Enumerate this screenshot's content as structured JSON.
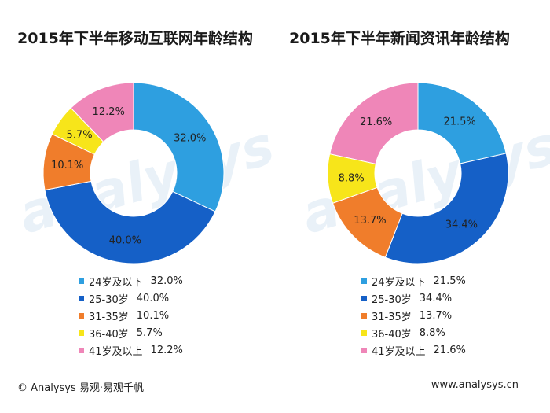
{
  "chart_data": [
    {
      "type": "pie",
      "title": "2015年下半年移动互联网年龄结构",
      "categories": [
        "24岁及以下",
        "25-30岁",
        "31-35岁",
        "36-40岁",
        "41岁及以上"
      ],
      "values": [
        32.0,
        40.0,
        10.1,
        5.7,
        12.2
      ],
      "value_labels": [
        "32.0%",
        "40.0%",
        "10.1%",
        "5.7%",
        "12.2%"
      ],
      "legend_values": [
        "32.0%",
        "40.0%",
        "10.1%",
        "5.7%",
        "12.2%"
      ],
      "legend_placement": "bottom"
    },
    {
      "type": "pie",
      "title": "2015年下半年新闻资讯年龄结构",
      "categories": [
        "24岁及以下",
        "25-30岁",
        "31-35岁",
        "36-40岁",
        "41岁及以上"
      ],
      "values": [
        21.5,
        34.4,
        13.7,
        8.8,
        21.6
      ],
      "value_labels": [
        "21.5%",
        "34.4%",
        "13.7%",
        "8.8%",
        "21.6%"
      ],
      "legend_values": [
        "21.5%",
        "34.4%",
        "13.7%",
        "8.8%",
        "21.6%"
      ],
      "legend_placement": "bottom"
    }
  ],
  "colors": [
    "#2e9fe0",
    "#1560c7",
    "#f07d2b",
    "#f7e51a",
    "#ef86b8"
  ],
  "watermark": "analysys",
  "footer": {
    "left": "© Analysys 易观·易观千帆",
    "right": "www.analysys.cn"
  }
}
